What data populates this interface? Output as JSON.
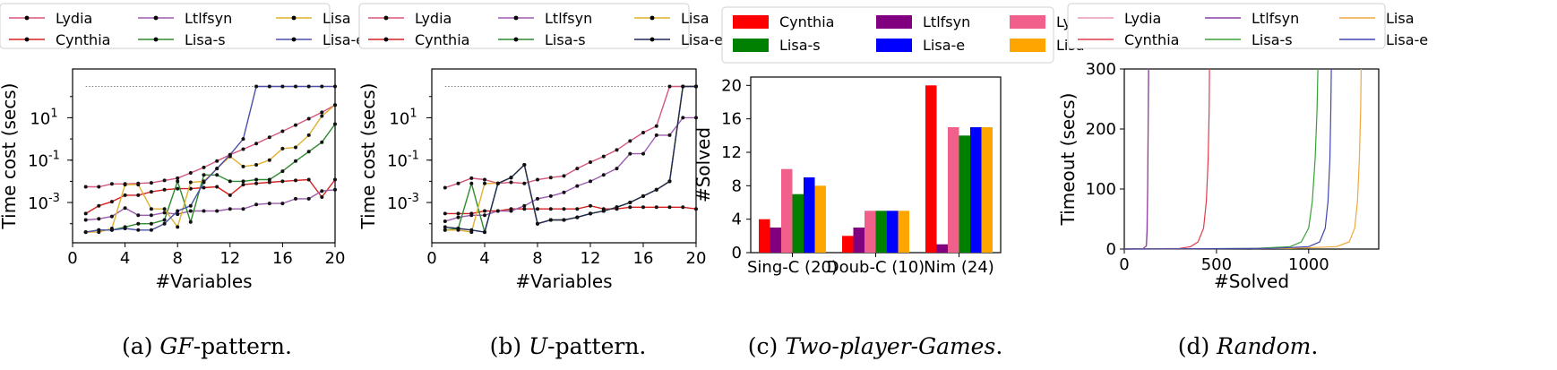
{
  "chart_data": [
    {
      "type": "line",
      "caption": {
        "prefix": "(a) ",
        "name": "GF",
        "suffix": "-pattern."
      },
      "xlabel": "#Variables",
      "ylabel": "Time cost (secs)",
      "xlim": [
        0,
        20
      ],
      "ylim_log10": [
        -4.9,
        3.3
      ],
      "yscale": "log",
      "xticks": [
        "0",
        "4",
        "8",
        "12",
        "16",
        "20"
      ],
      "yticks": [
        {
          "base": "10",
          "exp": "-3"
        },
        {
          "base": "10",
          "exp": "-1"
        },
        {
          "base": "10",
          "exp": "1"
        }
      ],
      "timeout_line": 300,
      "legend_position": "top",
      "series": [
        {
          "name": "Lydia",
          "color": "#d6577a",
          "x": [
            1,
            2,
            3,
            4,
            5,
            6,
            7,
            8,
            9,
            10,
            11,
            12,
            13,
            14,
            15,
            16,
            17,
            18,
            19,
            20
          ],
          "y": [
            0.0055,
            0.0055,
            0.0075,
            0.0075,
            0.008,
            0.0085,
            0.011,
            0.014,
            0.025,
            0.045,
            0.09,
            0.18,
            0.33,
            0.6,
            1.2,
            2.3,
            4.5,
            9,
            18,
            40
          ]
        },
        {
          "name": "Cynthia",
          "color": "#d62020",
          "x": [
            1,
            2,
            3,
            4,
            5,
            6,
            7,
            8,
            9,
            10,
            11,
            12,
            13,
            14,
            15,
            16,
            17,
            18,
            19,
            20
          ],
          "y": [
            0.0003,
            0.0007,
            0.0011,
            0.0022,
            0.0022,
            0.0032,
            0.004,
            0.0045,
            0.0045,
            0.005,
            0.0055,
            0.0022,
            0.007,
            0.008,
            0.009,
            0.01,
            0.011,
            0.012,
            0.0018,
            0.012
          ]
        },
        {
          "name": "Ltlfsyn",
          "color": "#9d5bb0",
          "x": [
            1,
            2,
            3,
            4,
            5,
            6,
            7,
            8,
            9,
            10,
            11,
            12,
            13,
            14,
            15,
            16,
            17,
            18,
            19,
            20
          ],
          "y": [
            0.00015,
            0.00017,
            0.00022,
            0.00055,
            0.00025,
            0.00025,
            0.00033,
            0.00028,
            0.0004,
            0.0004,
            0.0004,
            0.0005,
            0.0005,
            0.0008,
            0.0009,
            0.0009,
            0.0015,
            0.0015,
            0.0035,
            0.004
          ]
        },
        {
          "name": "Lisa-s",
          "color": "#2e8b2e",
          "x": [
            1,
            2,
            3,
            4,
            5,
            6,
            7,
            8,
            9,
            10,
            11,
            12,
            13,
            14,
            15,
            16,
            17,
            18,
            19,
            20
          ],
          "y": [
            4e-05,
            5e-05,
            5e-05,
            7e-05,
            0.0001,
            0.0001,
            0.00015,
            0.01,
            0.00012,
            0.02,
            0.02,
            0.01,
            0.01,
            0.012,
            0.012,
            0.03,
            0.09,
            0.25,
            0.7,
            5
          ]
        },
        {
          "name": "Lisa",
          "color": "#e0b030",
          "x": [
            1,
            2,
            3,
            4,
            5,
            6,
            7,
            8,
            9,
            10,
            11,
            12,
            13,
            14,
            15,
            16,
            17,
            18,
            19,
            20
          ],
          "y": [
            4e-05,
            4e-05,
            6e-05,
            0.007,
            0.007,
            0.0005,
            0.0005,
            7e-05,
            0.009,
            0.01,
            0.04,
            0.15,
            0.05,
            0.06,
            0.1,
            0.35,
            0.4,
            1.5,
            12,
            40
          ]
        },
        {
          "name": "Lisa-e",
          "color": "#4a50a8",
          "x": [
            1,
            2,
            3,
            4,
            5,
            6,
            7,
            8,
            9,
            10,
            11,
            12,
            13,
            14,
            15,
            16,
            17,
            18,
            19,
            20
          ],
          "y": [
            4e-05,
            5e-05,
            5e-05,
            6e-05,
            5e-05,
            5e-05,
            0.0001,
            0.0004,
            0.0007,
            0.009,
            0.04,
            0.18,
            1,
            300,
            300,
            300,
            300,
            300,
            300,
            300
          ]
        }
      ]
    },
    {
      "type": "line",
      "caption": {
        "prefix": "(b) ",
        "name": "U",
        "suffix": "-pattern."
      },
      "xlabel": "#Variables",
      "ylabel": "Time cost (secs)",
      "xlim": [
        0,
        20
      ],
      "ylim_log10": [
        -4.9,
        3.3
      ],
      "yscale": "log",
      "xticks": [
        "0",
        "4",
        "8",
        "12",
        "16",
        "20"
      ],
      "yticks": [
        {
          "base": "10",
          "exp": "-3"
        },
        {
          "base": "10",
          "exp": "-1"
        },
        {
          "base": "10",
          "exp": "1"
        }
      ],
      "timeout_line": 300,
      "legend_position": "top",
      "series": [
        {
          "name": "Lydia",
          "color": "#d6577a",
          "x": [
            1,
            2,
            3,
            4,
            5,
            6,
            7,
            8,
            9,
            10,
            11,
            12,
            13,
            14,
            15,
            16,
            17,
            18,
            19,
            20
          ],
          "y": [
            0.005,
            0.008,
            0.014,
            0.012,
            0.008,
            0.009,
            0.008,
            0.012,
            0.015,
            0.018,
            0.04,
            0.08,
            0.15,
            0.3,
            0.8,
            2,
            4,
            300,
            300,
            300
          ]
        },
        {
          "name": "Cynthia",
          "color": "#d62020",
          "x": [
            1,
            2,
            3,
            4,
            5,
            6,
            7,
            8,
            9,
            10,
            11,
            12,
            13,
            14,
            15,
            16,
            17,
            18,
            19,
            20
          ],
          "y": [
            0.0003,
            0.0003,
            0.0003,
            0.0004,
            0.0004,
            0.0005,
            0.0005,
            0.0005,
            0.0005,
            0.0005,
            0.0005,
            0.0007,
            0.0005,
            0.0005,
            0.0006,
            0.0006,
            0.0006,
            0.0006,
            0.0006,
            0.0005
          ]
        },
        {
          "name": "Ltlfsyn",
          "color": "#9d5bb0",
          "x": [
            1,
            2,
            3,
            4,
            5,
            6,
            7,
            8,
            9,
            10,
            11,
            12,
            13,
            14,
            15,
            16,
            17,
            18,
            19,
            20
          ],
          "y": [
            0.00013,
            0.0002,
            0.00025,
            0.00025,
            0.0004,
            0.0004,
            0.0007,
            0.0015,
            0.002,
            0.003,
            0.006,
            0.01,
            0.02,
            0.04,
            0.2,
            0.2,
            1.5,
            1.5,
            10,
            10
          ]
        },
        {
          "name": "Lisa-s",
          "color": "#2e8b2e",
          "x": [
            1,
            2,
            3,
            4,
            5,
            6,
            7,
            8,
            9,
            10,
            11,
            12,
            13,
            14,
            15,
            16,
            17,
            18,
            19,
            20
          ],
          "y": [
            5e-05,
            6e-05,
            0.008,
            4e-05,
            0.008,
            0.015,
            0.06,
            0.0001,
            0.00015,
            0.00015,
            0.0002,
            0.0003,
            0.0004,
            0.0006,
            0.001,
            0.002,
            0.004,
            0.01,
            300,
            300
          ]
        },
        {
          "name": "Lisa",
          "color": "#e0b030",
          "x": [
            1,
            2,
            3,
            4,
            5,
            6,
            7,
            8,
            9,
            10,
            11,
            12,
            13,
            14,
            15,
            16,
            17,
            18,
            19,
            20
          ],
          "y": [
            5e-05,
            5e-05,
            4e-05,
            0.008,
            0.008,
            0.015,
            0.06,
            0.0001,
            0.00015,
            0.00015,
            0.0002,
            0.0003,
            0.0004,
            0.0006,
            0.001,
            0.002,
            0.004,
            0.01,
            300,
            300
          ]
        },
        {
          "name": "Lisa-e",
          "color": "#1f2a5a",
          "x": [
            1,
            2,
            3,
            4,
            5,
            6,
            7,
            8,
            9,
            10,
            11,
            12,
            13,
            14,
            15,
            16,
            17,
            18,
            19,
            20
          ],
          "y": [
            7e-05,
            6e-05,
            5e-05,
            4e-05,
            0.008,
            0.015,
            0.06,
            0.0001,
            0.00015,
            0.00015,
            0.0002,
            0.0003,
            0.0004,
            0.0006,
            0.001,
            0.002,
            0.004,
            0.01,
            300,
            300
          ]
        }
      ]
    },
    {
      "type": "bar",
      "caption": {
        "prefix": "(c) ",
        "name": "Two-player-Games",
        "suffix": "."
      },
      "xlabel": "",
      "ylabel": "#Solved",
      "ylim": [
        0,
        21
      ],
      "yticks": [
        "0",
        "4",
        "8",
        "12",
        "16",
        "20"
      ],
      "categories": [
        "Sing-C (20)",
        "Doub-C (10)",
        "Nim (24)"
      ],
      "legend_position": "top",
      "series": [
        {
          "name": "Cynthia",
          "color": "#ff0000",
          "values": [
            4,
            2,
            20
          ]
        },
        {
          "name": "Ltlfsyn",
          "color": "#800080",
          "values": [
            3,
            3,
            1
          ]
        },
        {
          "name": "Lydia",
          "color": "#f0608a",
          "values": [
            10,
            5,
            15
          ]
        },
        {
          "name": "Lisa-s",
          "color": "#008000",
          "values": [
            7,
            5,
            14
          ]
        },
        {
          "name": "Lisa-e",
          "color": "#0000ff",
          "values": [
            9,
            5,
            15
          ]
        },
        {
          "name": "Lisa",
          "color": "#ffa500",
          "values": [
            8,
            5,
            15
          ]
        }
      ]
    },
    {
      "type": "line",
      "caption": {
        "prefix": "(d) ",
        "name": "Random",
        "suffix": "."
      },
      "xlabel": "#Solved",
      "ylabel": "Timeout (secs)",
      "xlim": [
        0,
        1380
      ],
      "ylim": [
        0,
        300
      ],
      "xticks": [
        "0",
        "500",
        "1000"
      ],
      "yticks": [
        "0",
        "100",
        "200",
        "300"
      ],
      "legend_position": "top",
      "series": [
        {
          "name": "Lydia",
          "color": "#e89ab0",
          "x": [
            0,
            100,
            118,
            122,
            126,
            129,
            130
          ],
          "y": [
            0,
            0.5,
            5,
            30,
            100,
            220,
            300
          ]
        },
        {
          "name": "Cynthia",
          "color": "#e03c4a",
          "x": [
            0,
            300,
            360,
            400,
            430,
            445,
            455,
            460,
            462
          ],
          "y": [
            0,
            1,
            4,
            12,
            35,
            80,
            150,
            230,
            300
          ]
        },
        {
          "name": "Ltlfsyn",
          "color": "#8b3fa5",
          "x": [
            0,
            100,
            120,
            124,
            127,
            130,
            132
          ],
          "y": [
            0,
            0.5,
            5,
            30,
            100,
            220,
            300
          ]
        },
        {
          "name": "Lisa-s",
          "color": "#3aa03a",
          "x": [
            0,
            700,
            900,
            960,
            1000,
            1020,
            1035,
            1045,
            1050
          ],
          "y": [
            0,
            1,
            4,
            12,
            35,
            80,
            150,
            230,
            300
          ]
        },
        {
          "name": "Lisa",
          "color": "#f0a840",
          "x": [
            0,
            900,
            1150,
            1220,
            1250,
            1265,
            1275,
            1282,
            1285
          ],
          "y": [
            0,
            1,
            4,
            12,
            35,
            80,
            150,
            230,
            300
          ]
        },
        {
          "name": "Lisa-e",
          "color": "#3f46b0",
          "x": [
            0,
            800,
            1000,
            1060,
            1090,
            1105,
            1115,
            1120,
            1123
          ],
          "y": [
            0,
            1,
            4,
            12,
            35,
            80,
            150,
            230,
            300
          ]
        }
      ]
    }
  ]
}
